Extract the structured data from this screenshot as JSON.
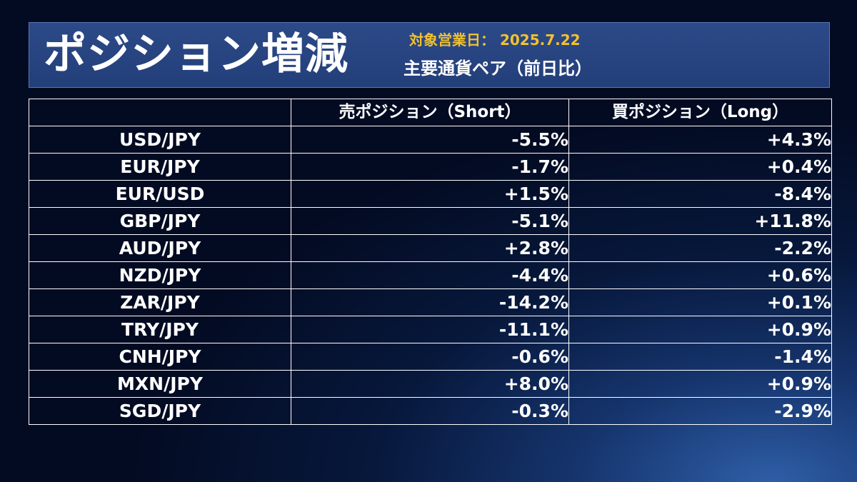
{
  "header": {
    "title": "ポジション増減",
    "date_line": "対象営業日： 2025.7.22",
    "subtitle": "主要通貨ペア（前日比）"
  },
  "table": {
    "columns": [
      "",
      "売ポジション（Short）",
      "買ポジション（Long）"
    ],
    "rows": [
      {
        "pair": "USD/JPY",
        "short": "-5.5%",
        "long": "+4.3%"
      },
      {
        "pair": "EUR/JPY",
        "short": "-1.7%",
        "long": "+0.4%"
      },
      {
        "pair": "EUR/USD",
        "short": "+1.5%",
        "long": "-8.4%"
      },
      {
        "pair": "GBP/JPY",
        "short": "-5.1%",
        "long": "+11.8%"
      },
      {
        "pair": "AUD/JPY",
        "short": "+2.8%",
        "long": "-2.2%"
      },
      {
        "pair": "NZD/JPY",
        "short": "-4.4%",
        "long": "+0.6%"
      },
      {
        "pair": "ZAR/JPY",
        "short": "-14.2%",
        "long": "+0.1%"
      },
      {
        "pair": "TRY/JPY",
        "short": "-11.1%",
        "long": "+0.9%"
      },
      {
        "pair": "CNH/JPY",
        "short": "-0.6%",
        "long": "-1.4%"
      },
      {
        "pair": "MXN/JPY",
        "short": "+8.0%",
        "long": "+0.9%"
      },
      {
        "pair": "SGD/JPY",
        "short": "-0.3%",
        "long": "-2.9%"
      }
    ]
  },
  "colors": {
    "header_bg": "#2c4a88",
    "date_text": "#f2c12e",
    "text": "#ffffff",
    "background_dark": "#030b22",
    "background_light": "#2f5fa8"
  }
}
